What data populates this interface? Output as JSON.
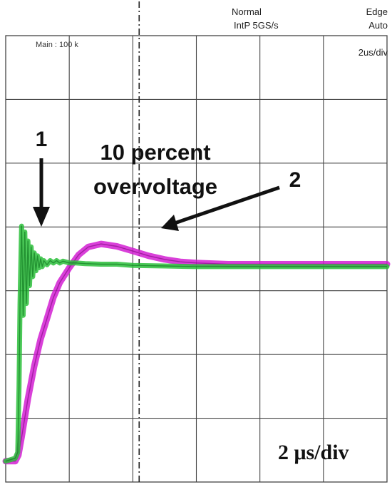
{
  "header": {
    "acq_mode": "Normal",
    "interp_rate": "IntP  5GS/s",
    "trigger_type": "Edge",
    "trigger_mode": "Auto",
    "timebase": "2us/div",
    "main_label": "Main : 100 k"
  },
  "annotations": {
    "marker_1": "1",
    "marker_2": "2",
    "overvoltage_line1": "10 percent",
    "overvoltage_line2": "overvoltage",
    "time_per_div": "2 μs/div"
  },
  "colors": {
    "trace_1": "#2bbf3b",
    "trace_2": "#d21fd2",
    "grid": "#444444",
    "trigger_marker": "#222222"
  },
  "chart_data": {
    "type": "line",
    "title": "",
    "xlabel": "",
    "ylabel": "",
    "xlim": [
      0,
      12
    ],
    "ylim": [
      0,
      7.5
    ],
    "grid": true,
    "x_unit": "div (2 μs/div)",
    "y_unit": "div",
    "trigger_x": 4.2,
    "series": [
      {
        "id": "trace-1",
        "color": "#2bbf3b",
        "x": [
          0,
          0.3,
          0.38,
          0.42,
          0.45,
          0.5,
          0.55,
          0.6,
          0.65,
          0.7,
          0.75,
          0.8,
          0.85,
          0.9,
          0.95,
          1.0,
          1.05,
          1.1,
          1.15,
          1.2,
          1.3,
          1.4,
          1.5,
          1.6,
          1.7,
          1.8,
          2.0,
          2.2,
          2.5,
          3.0,
          3.5,
          4.0,
          5.0,
          6.0,
          7.0,
          8.0,
          9.0,
          10.0,
          11.0,
          12.0
        ],
        "y": [
          0.35,
          0.4,
          0.5,
          1.6,
          3.0,
          4.3,
          2.8,
          4.2,
          3.0,
          4.05,
          3.3,
          3.95,
          3.45,
          3.85,
          3.55,
          3.8,
          3.6,
          3.75,
          3.62,
          3.72,
          3.65,
          3.72,
          3.68,
          3.72,
          3.68,
          3.71,
          3.68,
          3.68,
          3.67,
          3.66,
          3.66,
          3.64,
          3.63,
          3.62,
          3.62,
          3.62,
          3.62,
          3.62,
          3.62,
          3.62
        ]
      },
      {
        "id": "trace-2",
        "color": "#d21fd2",
        "x": [
          0,
          0.3,
          0.4,
          0.5,
          0.7,
          0.9,
          1.1,
          1.3,
          1.5,
          1.7,
          2.0,
          2.3,
          2.6,
          3.0,
          3.5,
          4.0,
          4.5,
          5.0,
          5.5,
          6.0,
          7.0,
          8.0,
          9.0,
          10.0,
          11.0,
          12.0
        ],
        "y": [
          0.35,
          0.35,
          0.45,
          0.75,
          1.4,
          1.95,
          2.4,
          2.75,
          3.1,
          3.35,
          3.6,
          3.82,
          3.95,
          4.0,
          3.96,
          3.88,
          3.8,
          3.74,
          3.7,
          3.68,
          3.66,
          3.66,
          3.66,
          3.66,
          3.66,
          3.66
        ]
      }
    ]
  }
}
